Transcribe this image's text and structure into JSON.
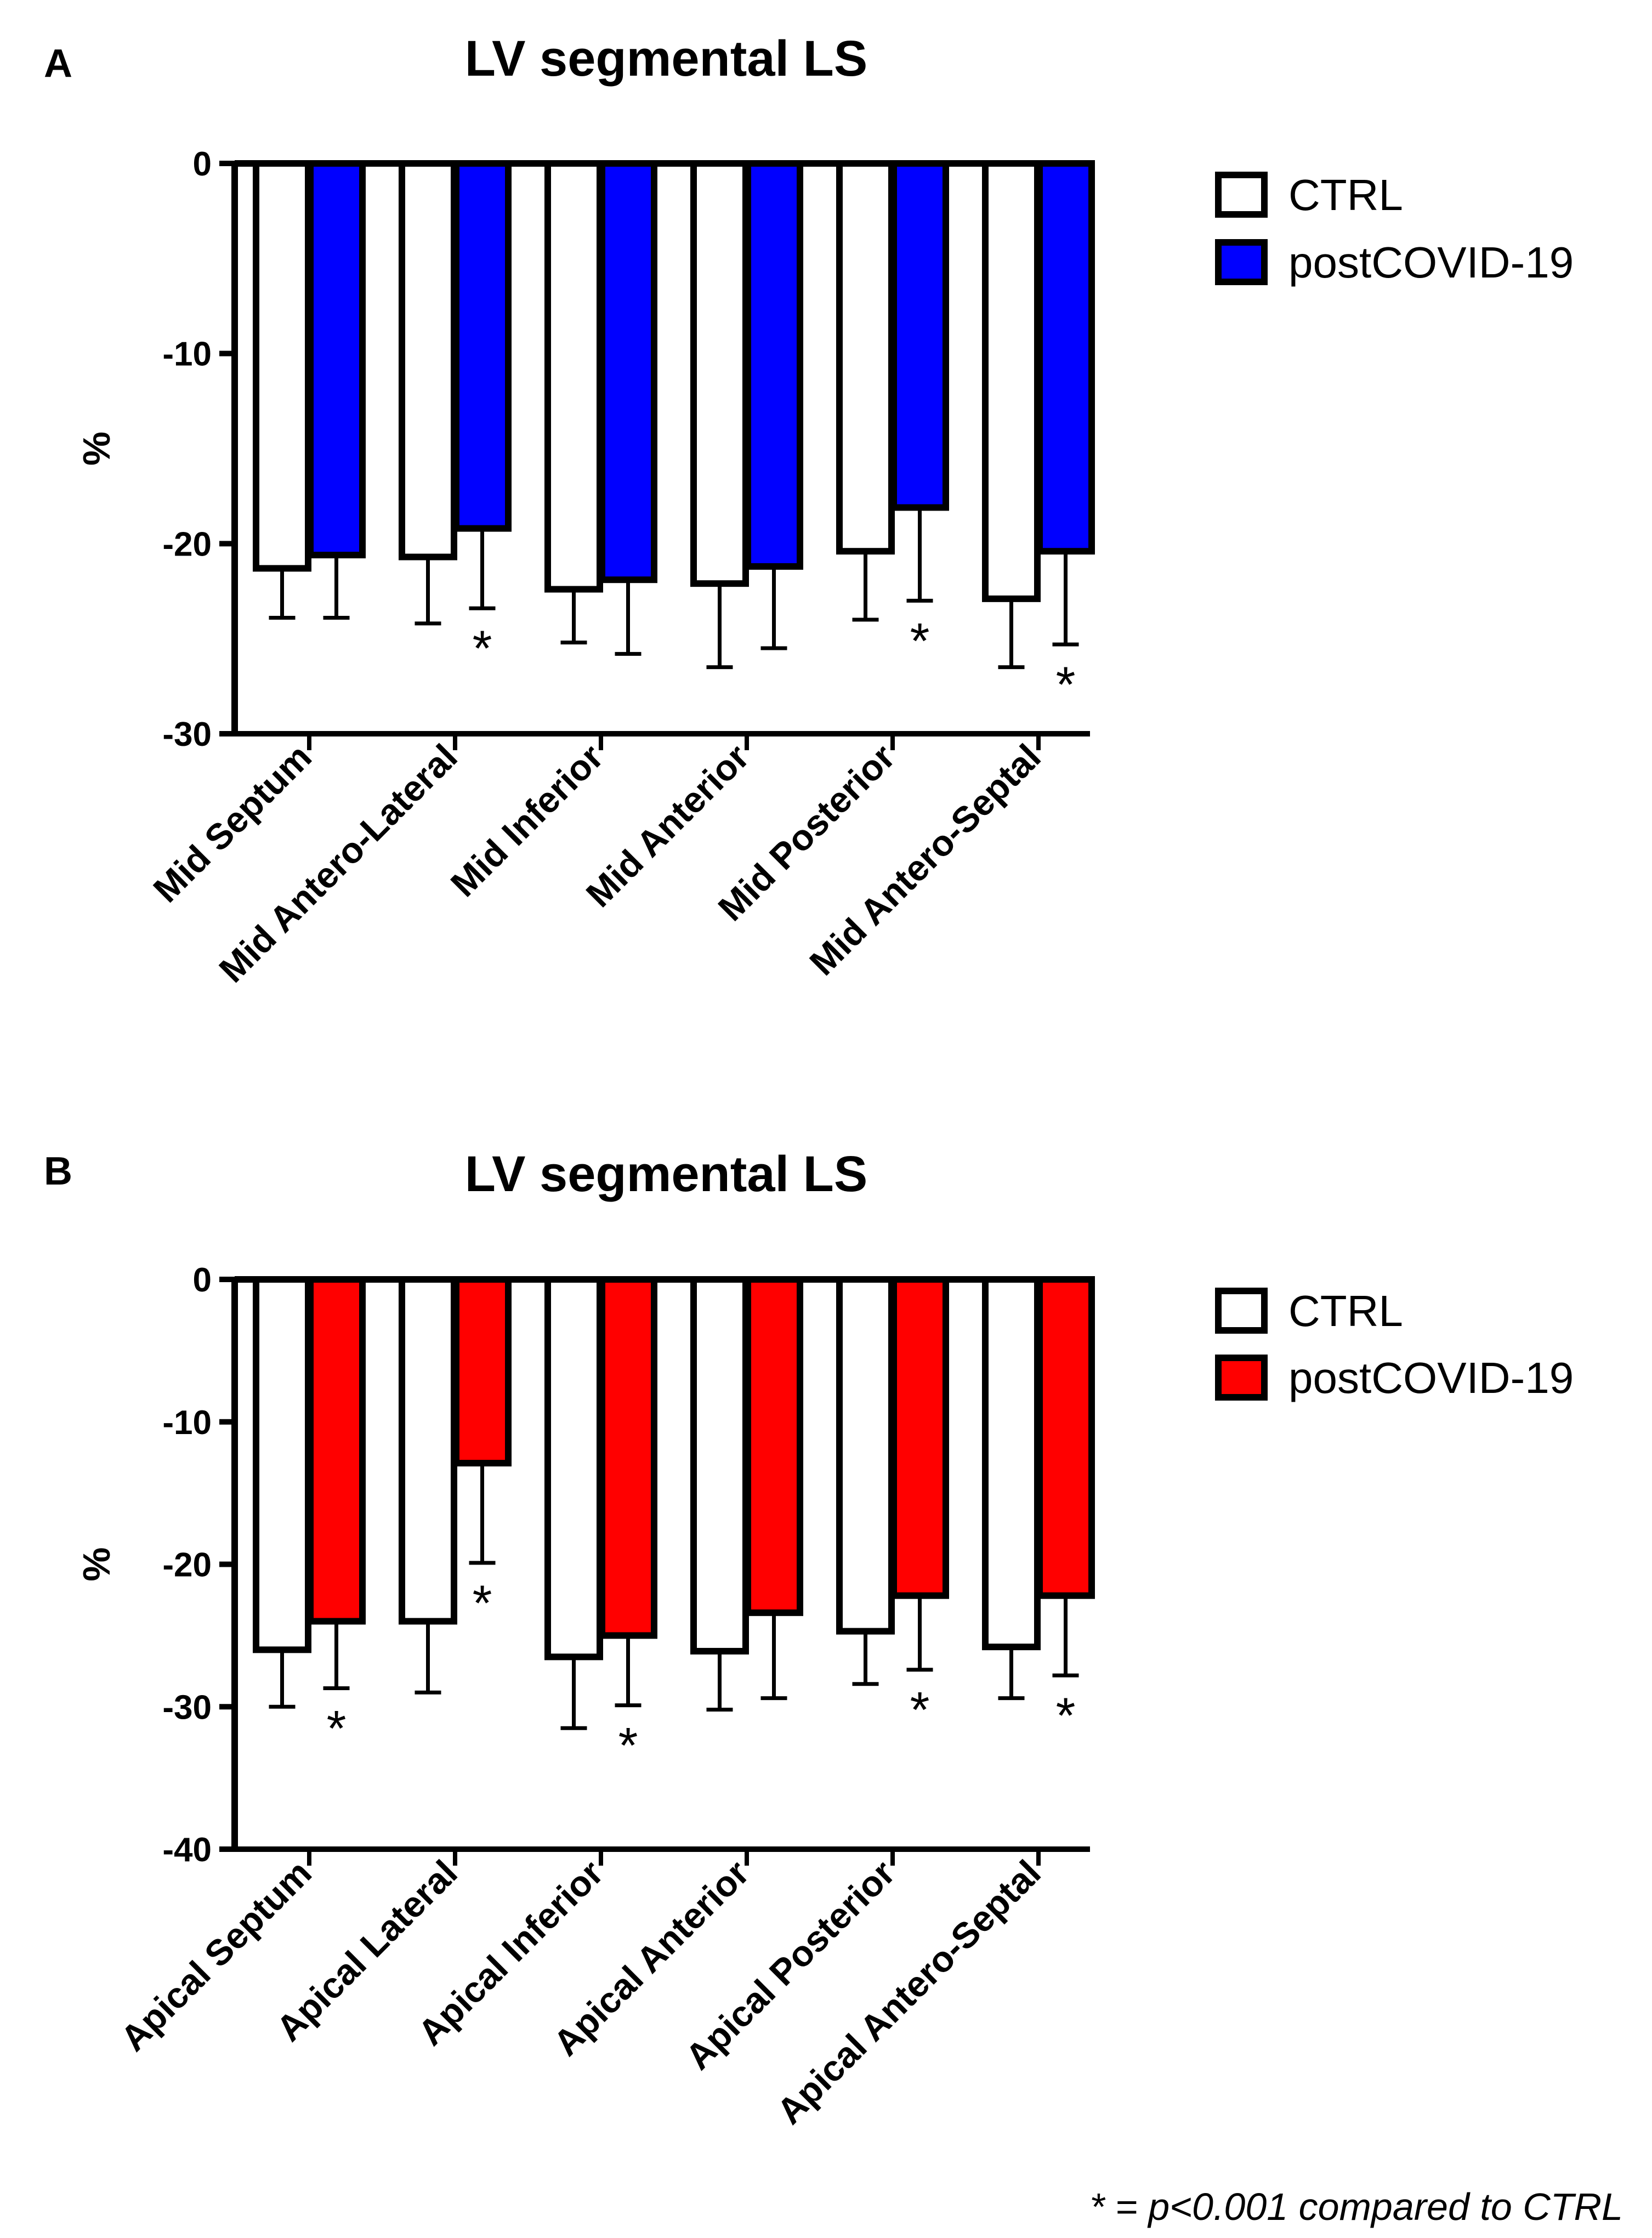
{
  "figure": {
    "footnote": "* = p<0.001 compared to CTRL"
  },
  "colors": {
    "ctrl_fill": "#ffffff",
    "outline": "#000000",
    "panel_a_post": "#0000ff",
    "panel_b_post": "#ff0000"
  },
  "chart_data": [
    {
      "panel": "A",
      "type": "bar",
      "title": "LV segmental LS",
      "xlabel": "",
      "ylabel": "%",
      "ylim": [
        -30,
        0
      ],
      "yticks": [
        0,
        -10,
        -20,
        -30
      ],
      "ytick_labels": [
        "0",
        "-10",
        "-20",
        "-30"
      ],
      "legend_position": "top-right",
      "categories": [
        "Mid Septum",
        "Mid Antero-Lateral",
        "Mid Inferior",
        "Mid Anterior",
        "Mid Posterior",
        "Mid Antero-Septal"
      ],
      "series": [
        {
          "name": "CTRL",
          "color": "#ffffff",
          "values": [
            -21.3,
            -20.7,
            -22.4,
            -22.1,
            -20.4,
            -22.9
          ],
          "errors": [
            2.6,
            3.5,
            2.8,
            4.4,
            3.6,
            3.6
          ],
          "significant": [
            false,
            false,
            false,
            false,
            false,
            false
          ]
        },
        {
          "name": "postCOVID-19",
          "color": "#0000ff",
          "values": [
            -20.6,
            -19.2,
            -21.9,
            -21.2,
            -18.1,
            -20.4
          ],
          "errors": [
            3.3,
            4.2,
            3.9,
            4.3,
            4.9,
            4.9
          ],
          "significant": [
            false,
            true,
            false,
            false,
            true,
            true
          ]
        }
      ],
      "significance_marker": "*"
    },
    {
      "panel": "B",
      "type": "bar",
      "title": "LV segmental LS",
      "xlabel": "",
      "ylabel": "%",
      "ylim": [
        -40,
        0
      ],
      "yticks": [
        0,
        -10,
        -20,
        -30,
        -40
      ],
      "ytick_labels": [
        "0",
        "-10",
        "-20",
        "-30",
        "-40"
      ],
      "legend_position": "top-right",
      "categories": [
        "Apical Septum",
        "Apical Lateral",
        "Apical Inferior",
        "Apical Anterior",
        "Apical Posterior",
        "Apical Antero-Septal"
      ],
      "series": [
        {
          "name": "CTRL",
          "color": "#ffffff",
          "values": [
            -26.0,
            -24.0,
            -26.5,
            -26.1,
            -24.7,
            -25.8
          ],
          "errors": [
            4.0,
            5.0,
            5.0,
            4.1,
            3.7,
            3.6
          ],
          "significant": [
            false,
            false,
            false,
            false,
            false,
            false
          ]
        },
        {
          "name": "postCOVID-19",
          "color": "#ff0000",
          "values": [
            -24.0,
            -12.9,
            -25.0,
            -23.4,
            -22.2,
            -22.2
          ],
          "errors": [
            4.7,
            7.0,
            4.9,
            6.0,
            5.2,
            5.6
          ],
          "significant": [
            true,
            true,
            true,
            false,
            true,
            true
          ]
        }
      ],
      "significance_marker": "*"
    }
  ]
}
